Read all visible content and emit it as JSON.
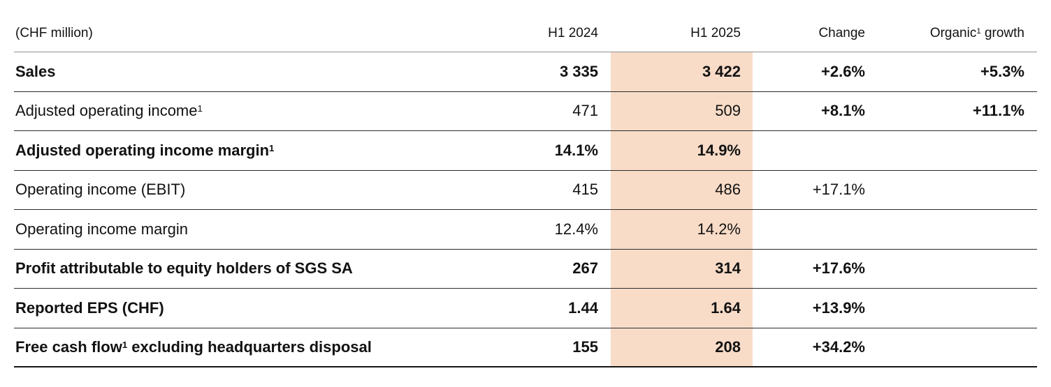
{
  "table": {
    "unit_label": "(CHF million)",
    "header": {
      "col_2024": "H1 2024",
      "col_2025": "H1 2025",
      "col_change": "Change",
      "col_organic_base": "Organic",
      "col_organic_sup": "1",
      "col_organic_rest": " growth"
    },
    "highlight_color": "#f8dcc8",
    "rows": [
      {
        "label": "Sales",
        "label_sup": "",
        "label_rest": "",
        "h1_2024": "3 335",
        "h1_2025": "3 422",
        "change": "+2.6%",
        "organic": "+5.3%",
        "label_bold": true,
        "values_bold": true,
        "change_bold": true
      },
      {
        "label": "Adjusted operating income",
        "label_sup": "1",
        "label_rest": "",
        "h1_2024": "471",
        "h1_2025": "509",
        "change": "+8.1%",
        "organic": "+11.1%",
        "label_bold": false,
        "values_bold": false,
        "change_bold": true
      },
      {
        "label": "Adjusted operating income margin",
        "label_sup": "1",
        "label_rest": "",
        "h1_2024": "14.1%",
        "h1_2025": "14.9%",
        "change": "",
        "organic": "",
        "label_bold": true,
        "values_bold": true,
        "change_bold": false
      },
      {
        "label": "Operating income (EBIT)",
        "label_sup": "",
        "label_rest": "",
        "h1_2024": "415",
        "h1_2025": "486",
        "change": "+17.1%",
        "organic": "",
        "label_bold": false,
        "values_bold": false,
        "change_bold": false
      },
      {
        "label": "Operating income margin",
        "label_sup": "",
        "label_rest": "",
        "h1_2024": "12.4%",
        "h1_2025": "14.2%",
        "change": "",
        "organic": "",
        "label_bold": false,
        "values_bold": false,
        "change_bold": false
      },
      {
        "label": "Profit attributable to equity holders of SGS SA",
        "label_sup": "",
        "label_rest": "",
        "h1_2024": "267",
        "h1_2025": "314",
        "change": "+17.6%",
        "organic": "",
        "label_bold": true,
        "values_bold": true,
        "change_bold": true
      },
      {
        "label": "Reported EPS (CHF)",
        "label_sup": "",
        "label_rest": "",
        "h1_2024": "1.44",
        "h1_2025": "1.64",
        "change": "+13.9%",
        "organic": "",
        "label_bold": true,
        "values_bold": true,
        "change_bold": true
      },
      {
        "label": "Free cash flow",
        "label_sup": "1",
        "label_rest": " excluding headquarters disposal",
        "h1_2024": "155",
        "h1_2025": "208",
        "change": "+34.2%",
        "organic": "",
        "label_bold": true,
        "values_bold": true,
        "change_bold": true
      }
    ]
  }
}
